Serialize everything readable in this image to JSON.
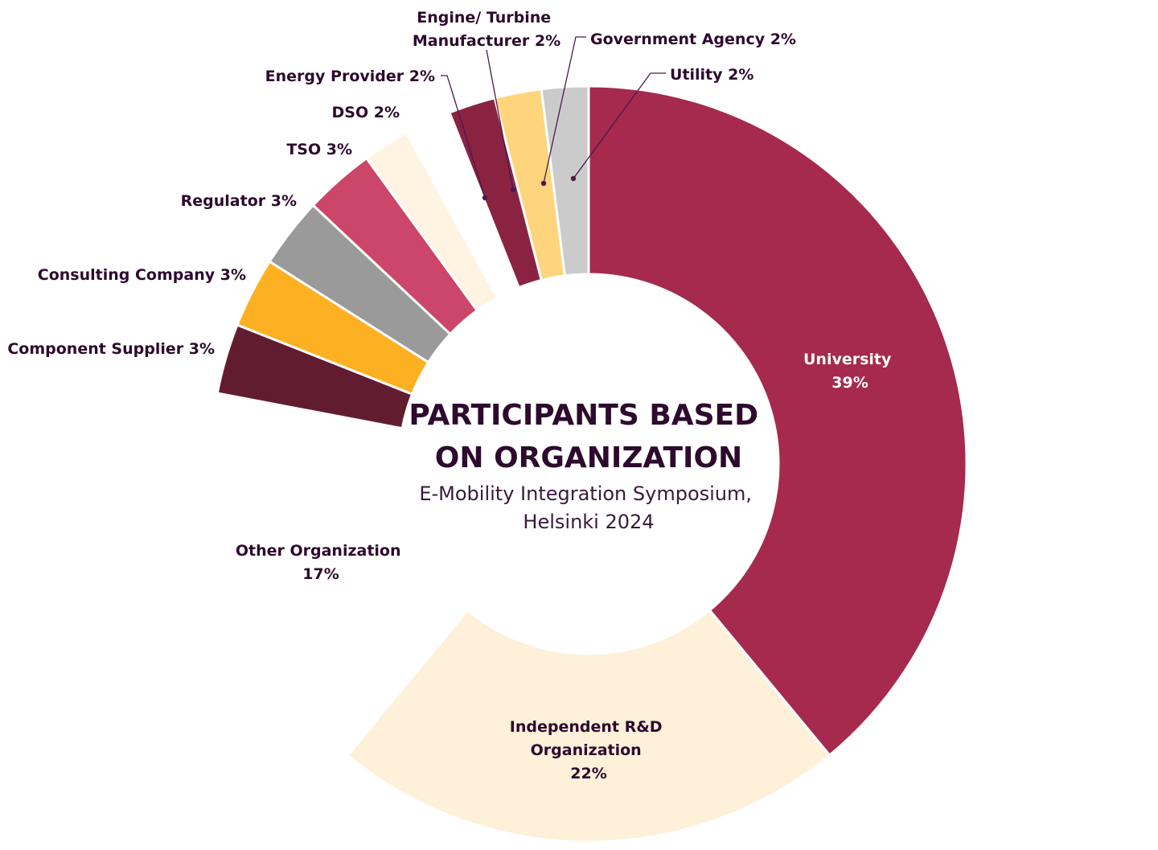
{
  "chart_data": {
    "type": "pie",
    "title": "PARTICIPANTS BASED ON ORGANIZATION",
    "subtitle": "E-Mobility Integration Symposium, Helsinki 2024",
    "slices": [
      {
        "label": "University",
        "value": 39,
        "value_label": "39%",
        "color": "#a52a4d"
      },
      {
        "label": "Independent R&D Organization",
        "value": 22,
        "value_label": "22%",
        "color": "#fef0d9"
      },
      {
        "label": "Other Organization",
        "value": 17,
        "value_label": "17%",
        "color": "#ffffff"
      },
      {
        "label": "Component Supplier",
        "value": 3,
        "value_label": "3%",
        "color": "#621c30"
      },
      {
        "label": "Consulting Company",
        "value": 3,
        "value_label": "3%",
        "color": "#fdb022"
      },
      {
        "label": "Regulator",
        "value": 3,
        "value_label": "3%",
        "color": "#9a9a9a"
      },
      {
        "label": "TSO",
        "value": 3,
        "value_label": "3%",
        "color": "#cb4669"
      },
      {
        "label": "DSO",
        "value": 2,
        "value_label": "2%",
        "color": "#fff3e2"
      },
      {
        "label": "Energy Provider",
        "value": 2,
        "value_label": "2%",
        "color": "#ffffff"
      },
      {
        "label": "Engine/ Turbine Manufacturer",
        "value": 2,
        "value_label": "2%",
        "color": "#8a2342"
      },
      {
        "label": "Government Agency",
        "value": 2,
        "value_label": "2%",
        "color": "#fed47c"
      },
      {
        "label": "Utility",
        "value": 2,
        "value_label": "2%",
        "color": "#cbcbcb"
      }
    ]
  },
  "labels": {
    "university": [
      "University",
      "39%"
    ],
    "rnd": [
      "Independent R&D",
      "Organization",
      "22%"
    ],
    "other": [
      "Other Organization",
      "17%"
    ],
    "component_supplier": "Component Supplier 3%",
    "consulting_company": "Consulting Company 3%",
    "regulator": "Regulator 3%",
    "tso": "TSO 3%",
    "dso": "DSO 2%",
    "energy_provider": "Energy Provider 2%",
    "engine_turbine": [
      "Engine/ Turbine",
      "Manufacturer 2%"
    ],
    "government_agency": "Government Agency 2%",
    "utility": "Utility 2%"
  },
  "title_lines": [
    "PARTICIPANTS BASED",
    "ON ORGANIZATION"
  ],
  "subtitle_lines": [
    "E-Mobility Integration Symposium,",
    "Helsinki 2024"
  ]
}
